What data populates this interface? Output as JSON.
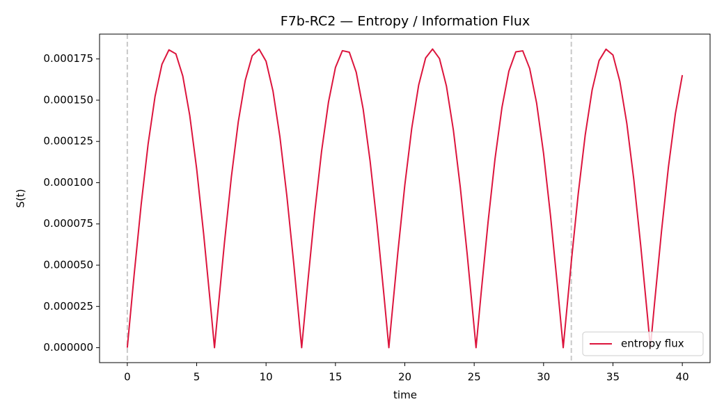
{
  "chart_data": {
    "type": "line",
    "title": "F7b-RC2 — Entropy / Information Flux",
    "x_label": "time",
    "y_label": "S(t)",
    "x": [
      0,
      0.5,
      1,
      1.5,
      2,
      2.5,
      3,
      3.5,
      4,
      4.5,
      5,
      5.5,
      6,
      6.283,
      6.5,
      7,
      7.5,
      8,
      8.5,
      9,
      9.5,
      10,
      10.5,
      11,
      11.5,
      12,
      12.5,
      12.566,
      13,
      13.5,
      14,
      14.5,
      15,
      15.5,
      16,
      16.5,
      17,
      17.5,
      18,
      18.5,
      18.85,
      19,
      19.5,
      20,
      20.5,
      21,
      21.5,
      22,
      22.5,
      23,
      23.5,
      24,
      24.5,
      25,
      25.133,
      25.5,
      26,
      26.5,
      27,
      27.5,
      28,
      28.5,
      29,
      29.5,
      30,
      30.5,
      31,
      31.416,
      31.5,
      32,
      32.5,
      33,
      33.5,
      34,
      34.5,
      35,
      35.5,
      36,
      36.5,
      37,
      37.5,
      37.699,
      38,
      38.5,
      39,
      39.5,
      40
    ],
    "series": [
      {
        "name": "entropy flux",
        "color": "#dc143c",
        "values": [
          0,
          4.48e-05,
          8.68e-05,
          0.0001234,
          0.0001523,
          0.0001718,
          0.0001805,
          0.0001781,
          0.0001646,
          0.0001408,
          0.0001083,
          6.91e-05,
          2.55e-05,
          0,
          1.96e-05,
          6.35e-05,
          0.0001035,
          0.000137,
          0.000162,
          0.0001769,
          0.0001809,
          0.0001736,
          0.0001555,
          0.0001277,
          9.19e-05,
          5.06e-05,
          6e-06,
          0,
          3.89e-05,
          8.15e-05,
          0.0001189,
          0.0001489,
          0.0001698,
          0.00018,
          0.0001791,
          0.0001669,
          0.0001445,
          0.000113,
          7.46e-05,
          3.15e-05,
          0,
          1.36e-05,
          5.78e-05,
          9.85e-05,
          0.000133,
          0.0001592,
          0.0001756,
          0.000181,
          0.0001752,
          0.0001585,
          0.0001319,
          9.71e-05,
          5.63e-05,
          1.2e-05,
          0,
          3.31e-05,
          7.61e-05,
          0.0001144,
          0.0001455,
          0.0001676,
          0.0001793,
          0.0001799,
          0.0001692,
          0.0001482,
          0.0001177,
          8e-05,
          3.74e-05,
          0,
          7.6e-06,
          5.21e-05,
          9.34e-05,
          0.0001288,
          0.0001562,
          0.000174,
          0.0001809,
          0.0001774,
          0.0001613,
          0.0001359,
          0.0001021,
          6.2e-05,
          1.8e-05,
          0,
          2.71e-05,
          7.06e-05,
          0.0001096,
          0.0001418,
          0.0001652
        ]
      }
    ],
    "vlines": [
      0,
      32
    ],
    "xlim": [
      -2,
      42
    ],
    "ylim": [
      -9.05e-06,
      0.00019005
    ],
    "xticks": [
      0,
      5,
      10,
      15,
      20,
      25,
      30,
      35,
      40
    ],
    "yticks": [
      {
        "value": 0,
        "label": "0.000000"
      },
      {
        "value": 2.5e-05,
        "label": "0.000025"
      },
      {
        "value": 5e-05,
        "label": "0.000050"
      },
      {
        "value": 7.5e-05,
        "label": "0.000075"
      },
      {
        "value": 0.0001,
        "label": "0.000100"
      },
      {
        "value": 0.000125,
        "label": "0.000125"
      },
      {
        "value": 0.00015,
        "label": "0.000150"
      },
      {
        "value": 0.000175,
        "label": "0.000175"
      }
    ],
    "legend": "lower right",
    "grid": false
  }
}
